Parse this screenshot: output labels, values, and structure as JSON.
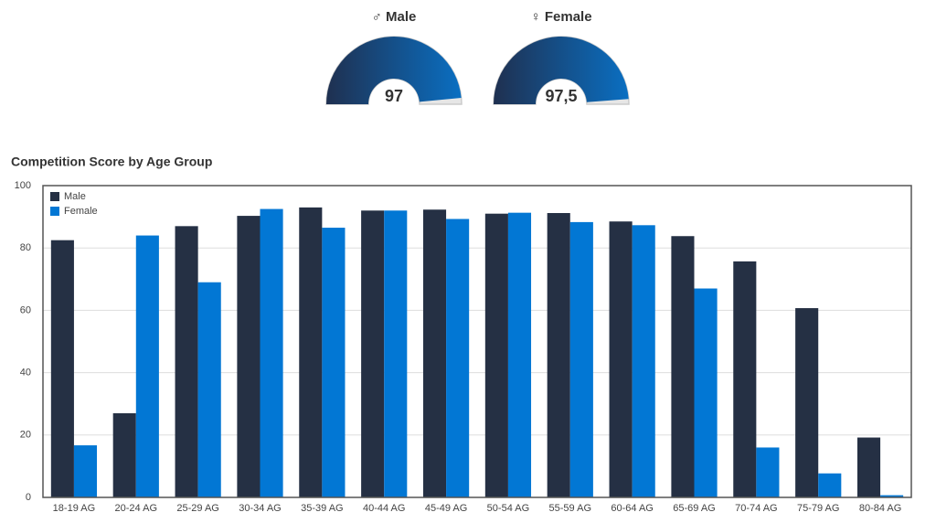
{
  "chart_data": [
    {
      "type": "gauge",
      "title": "♂ Male",
      "value": 97,
      "ylim": [
        0,
        100
      ],
      "colors": [
        "#1f3050",
        "#0a6fc2"
      ]
    },
    {
      "type": "gauge",
      "title": "♀ Female",
      "value": 97.5,
      "value_label": "97,5",
      "ylim": [
        0,
        100
      ],
      "colors": [
        "#1f3050",
        "#0a6fc2"
      ]
    },
    {
      "type": "bar",
      "title": "Competition Score by Age Group",
      "categories": [
        "18-19 AG",
        "20-24 AG",
        "25-29 AG",
        "30-34 AG",
        "35-39 AG",
        "40-44 AG",
        "45-49 AG",
        "50-54 AG",
        "55-59 AG",
        "60-64 AG",
        "65-69 AG",
        "70-74 AG",
        "75-79 AG",
        "80-84 AG"
      ],
      "series": [
        {
          "name": "Male",
          "color": "#253044",
          "values": [
            82.5,
            27,
            87,
            90.3,
            93,
            92,
            92.3,
            91,
            91.2,
            88.5,
            83.8,
            75.7,
            60.7,
            19.2
          ]
        },
        {
          "name": "Female",
          "color": "#0277d4",
          "values": [
            16.7,
            84,
            69,
            92.5,
            86.5,
            92,
            89.3,
            91.3,
            88.3,
            87.3,
            67,
            16,
            7.7,
            0.7
          ]
        }
      ],
      "ylim": [
        0,
        100
      ],
      "yticks": [
        0,
        20,
        40,
        60,
        80,
        100
      ],
      "grid": true,
      "legend": "top-left"
    }
  ]
}
